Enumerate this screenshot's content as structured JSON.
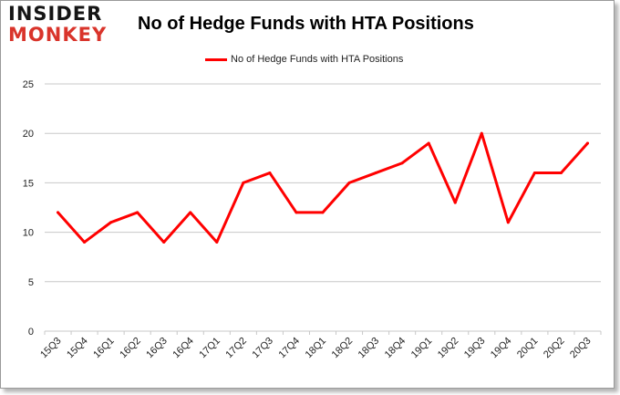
{
  "logo": {
    "line1": "INSIDER",
    "line2": "MONKEY"
  },
  "colors": {
    "series": "#ff0000",
    "grid": "#c8c8c8",
    "logo_dark": "#151515",
    "logo_red": "#d9342b"
  },
  "chart_data": {
    "type": "line",
    "title": "No of Hedge Funds with HTA Positions",
    "xlabel": "",
    "ylabel": "",
    "ylim": [
      0,
      25
    ],
    "yticks": [
      0,
      5,
      10,
      15,
      20,
      25
    ],
    "grid": true,
    "legend_position": "top",
    "categories": [
      "15Q3",
      "15Q4",
      "16Q1",
      "16Q2",
      "16Q3",
      "16Q4",
      "17Q1",
      "17Q2",
      "17Q3",
      "17Q4",
      "18Q1",
      "18Q2",
      "18Q3",
      "18Q4",
      "19Q1",
      "19Q2",
      "19Q3",
      "19Q4",
      "20Q1",
      "20Q2",
      "20Q3"
    ],
    "series": [
      {
        "name": "No of Hedge Funds with HTA Positions",
        "values": [
          12,
          9,
          11,
          12,
          9,
          12,
          9,
          15,
          16,
          12,
          12,
          15,
          16,
          17,
          19,
          13,
          20,
          11,
          16,
          16,
          19
        ]
      }
    ]
  }
}
